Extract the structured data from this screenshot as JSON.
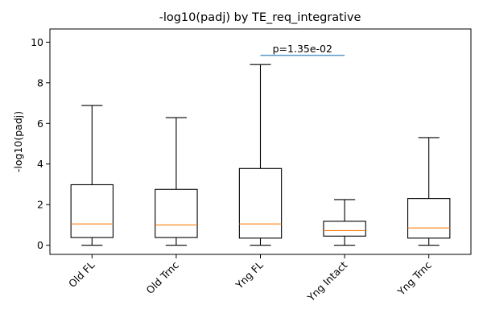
{
  "chart_data": {
    "type": "box",
    "title": "-log10(padj) by TE_req_integrative",
    "xlabel": "",
    "ylabel": "-log10(padj)",
    "ylim": [
      -0.45,
      10.65
    ],
    "yticks": [
      0,
      2,
      4,
      6,
      8,
      10
    ],
    "categories": [
      "Old FL",
      "Old Trnc",
      "Yng FL",
      "Yng Intact",
      "Yng Trnc"
    ],
    "boxes": [
      {
        "whisker_low": 0.0,
        "q1": 0.38,
        "median": 1.05,
        "q3": 2.98,
        "whisker_high": 6.88
      },
      {
        "whisker_low": 0.0,
        "q1": 0.38,
        "median": 1.0,
        "q3": 2.75,
        "whisker_high": 6.28
      },
      {
        "whisker_low": 0.0,
        "q1": 0.35,
        "median": 1.05,
        "q3": 3.78,
        "whisker_high": 8.9
      },
      {
        "whisker_low": 0.0,
        "q1": 0.45,
        "median": 0.72,
        "q3": 1.18,
        "whisker_high": 2.25
      },
      {
        "whisker_low": 0.0,
        "q1": 0.35,
        "median": 0.85,
        "q3": 2.3,
        "whisker_high": 5.3
      }
    ],
    "annotations": [
      {
        "text": "p=1.35e-02",
        "from_category": 2,
        "to_category": 3,
        "line_y": 9.35
      }
    ],
    "colors": {
      "box": "#000000",
      "median": "#ff7f0e",
      "annotation_line": "#1f77b4"
    },
    "grid": false,
    "legend": "none"
  }
}
